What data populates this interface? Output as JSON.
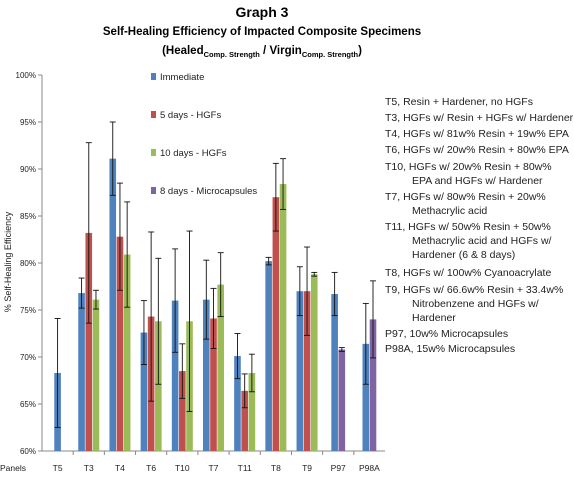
{
  "chart_data": {
    "type": "bar",
    "title": "Graph 3",
    "subtitle": "Self-Healing Efficiency of Impacted Composite Specimens",
    "formula": {
      "open": "(Healed",
      "healed_sub": "Comp. Strength",
      "mid": " / Virgin",
      "virgin_sub": "Comp. Strength",
      "close": ")"
    },
    "ylabel": "% Self-Healing Efficiency",
    "ylim": [
      60,
      100
    ],
    "yticks": [
      "60%",
      "65%",
      "70%",
      "75%",
      "80%",
      "85%",
      "90%",
      "95%",
      "100%"
    ],
    "x_axis_prefix": "Panels",
    "categories": [
      "T5",
      "T3",
      "T4",
      "T6",
      "T10",
      "T7",
      "T11",
      "T8",
      "T9",
      "P97",
      "P98A"
    ],
    "series": [
      {
        "name": "Immediate",
        "color": "#4f81bd",
        "values": [
          68.3,
          76.8,
          91.1,
          72.6,
          76.0,
          76.1,
          70.1,
          80.2,
          77.0,
          76.7,
          71.4
        ],
        "errors": [
          5.8,
          1.6,
          3.9,
          3.4,
          5.5,
          4.2,
          2.4,
          0.4,
          2.6,
          2.3,
          4.3
        ]
      },
      {
        "name": "5 days - HGFs",
        "color": "#c0504d",
        "values": [
          null,
          83.2,
          82.8,
          74.3,
          68.5,
          74.1,
          66.4,
          87.0,
          77.0,
          null,
          null
        ],
        "errors": [
          null,
          9.6,
          5.7,
          9.0,
          2.9,
          3.2,
          1.8,
          3.6,
          4.7,
          null,
          null
        ]
      },
      {
        "name": "10 days - HGFs",
        "color": "#9bbb59",
        "values": [
          null,
          76.1,
          80.9,
          73.8,
          73.8,
          77.7,
          68.3,
          88.4,
          78.8,
          null,
          null
        ],
        "errors": [
          null,
          1.0,
          5.6,
          6.7,
          9.6,
          3.4,
          2.0,
          2.7,
          0.2,
          null,
          null
        ]
      },
      {
        "name": "8 days - Microcapsules",
        "color": "#8064a2",
        "values": [
          null,
          null,
          null,
          null,
          null,
          null,
          null,
          null,
          null,
          70.8,
          74.0
        ],
        "errors": [
          null,
          null,
          null,
          null,
          null,
          null,
          null,
          null,
          null,
          0.2,
          4.1
        ]
      }
    ],
    "grid": false,
    "legend_position": "top-center",
    "annotations": [
      "T5, Resin + Hardener, no HGFs",
      "T3, HGFs w/ Resin + HGFs w/ Hardener",
      "T4, HGFs w/ 81w% Resin + 19w% EPA",
      "T6, HGFs w/ 20w% Resin + 80w% EPA",
      "T10, HGFs w/ 20w% Resin + 80w%",
      "EPA and HGFs w/ Hardener",
      "T7, HGFs w/ 80w% Resin + 20w%",
      "Methacrylic acid",
      "T11, HGFs w/ 50w% Resin + 50w%",
      "Methacrylic acid and HGFs w/",
      "Hardener (6 & 8 days)",
      "T8, HGFs w/ 100w% Cyanoacrylate",
      "T9, HGFs w/ 66.6w% Resin + 33.4w%",
      "Nitrobenzene and HGFs w/",
      "Hardener",
      "P97, 10w% Microcapsules",
      "P98A, 15w% Microcapsules"
    ]
  }
}
